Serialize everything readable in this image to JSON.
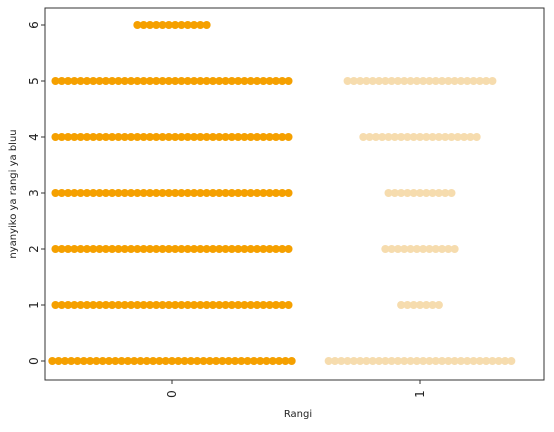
{
  "chart_data": {
    "type": "scatter",
    "subtype": "swarm",
    "xlabel": "Rangi",
    "ylabel": "nyanyiko ya rangi ya bluu",
    "categories": [
      "0",
      "1"
    ],
    "yticks": [
      "0",
      "1",
      "2",
      "3",
      "4",
      "5",
      "6"
    ],
    "ylim": [
      0,
      6
    ],
    "grid": false,
    "legend": "none",
    "colors": {
      "0": "#f5a000",
      "1": "#f6dcae"
    },
    "series": [
      {
        "category": "0",
        "counts": [
          {
            "y": 0,
            "n": 39
          },
          {
            "y": 1,
            "n": 38
          },
          {
            "y": 2,
            "n": 38
          },
          {
            "y": 3,
            "n": 38
          },
          {
            "y": 4,
            "n": 38
          },
          {
            "y": 5,
            "n": 38
          },
          {
            "y": 6,
            "n": 12
          }
        ]
      },
      {
        "category": "1",
        "counts": [
          {
            "y": 0,
            "n": 30
          },
          {
            "y": 1,
            "n": 7
          },
          {
            "y": 2,
            "n": 12
          },
          {
            "y": 3,
            "n": 11
          },
          {
            "y": 4,
            "n": 19
          },
          {
            "y": 5,
            "n": 24
          }
        ]
      }
    ]
  }
}
